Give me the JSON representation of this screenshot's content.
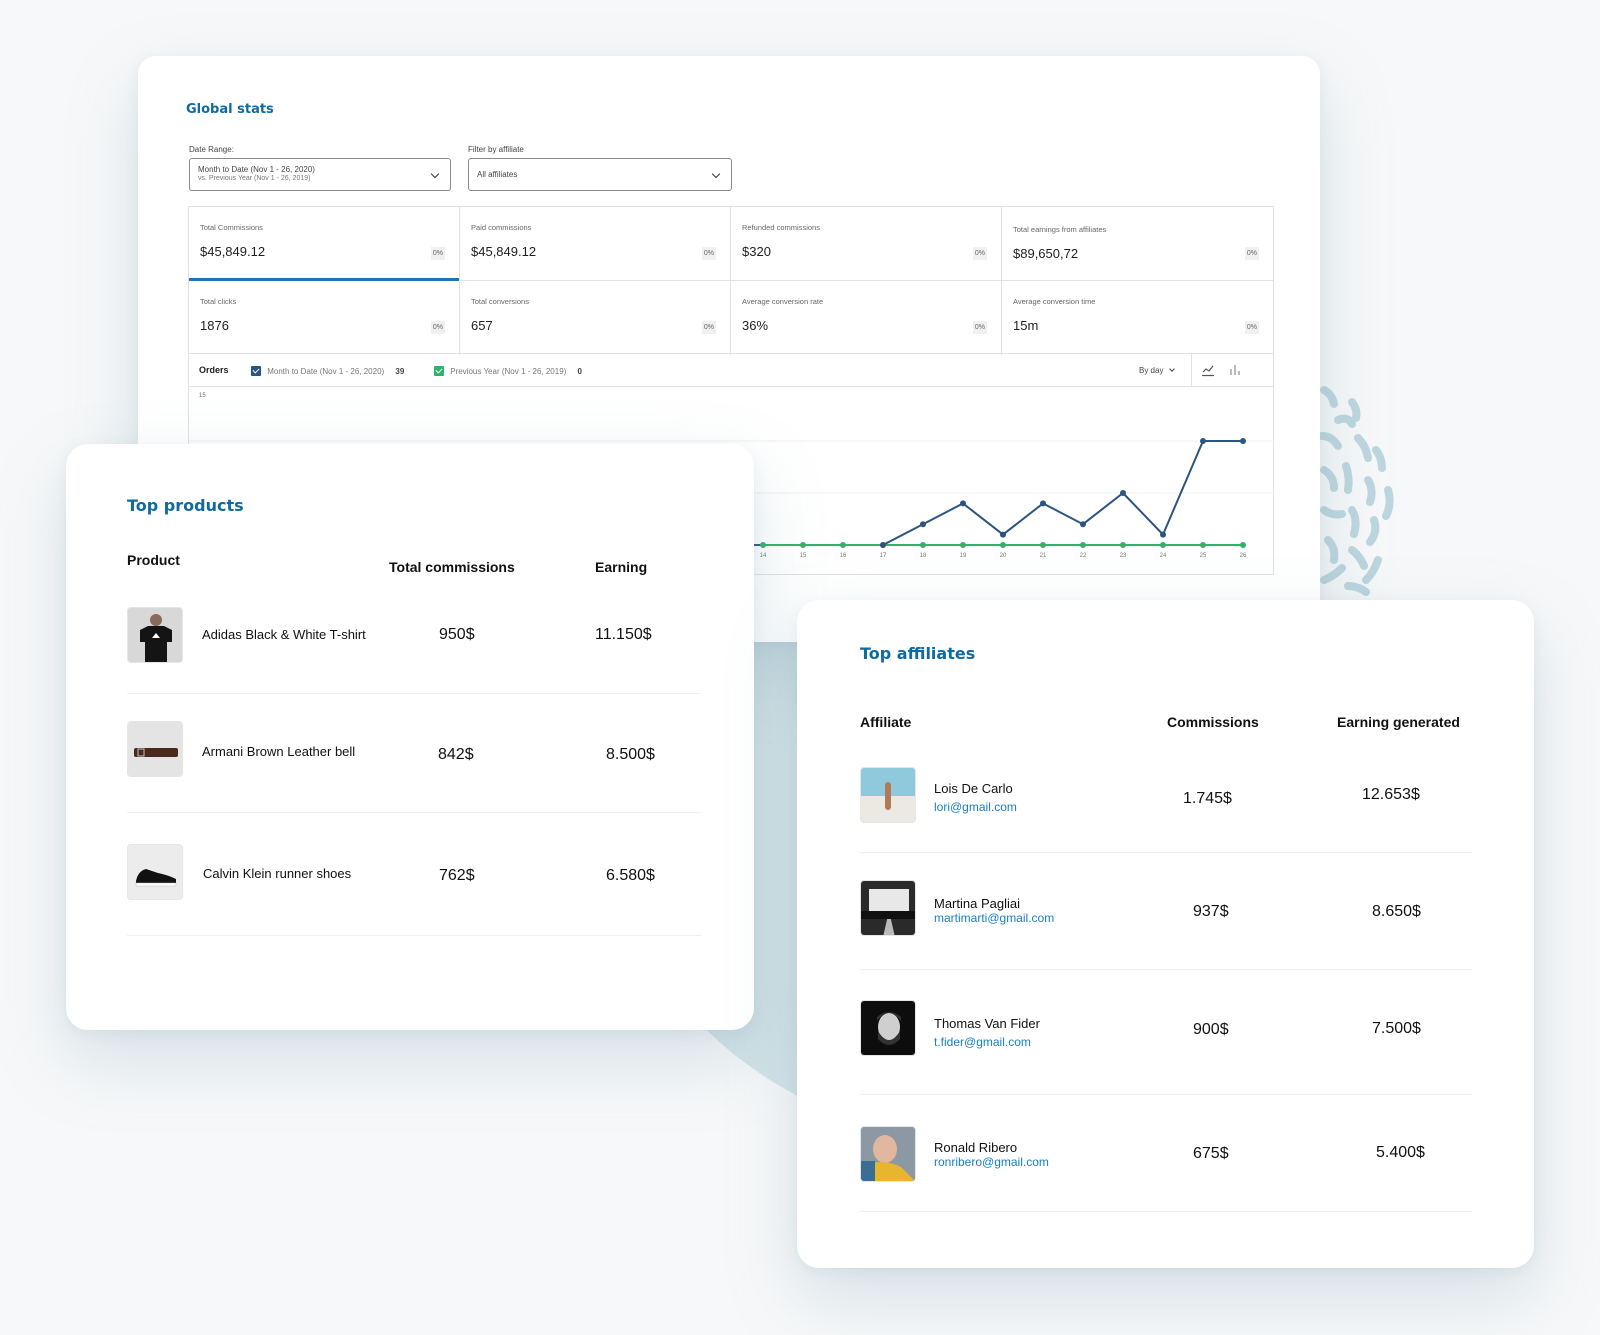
{
  "global_stats": {
    "title": "Global stats",
    "date_range": {
      "label": "Date Range:",
      "value": "Month to Date (Nov 1 - 26, 2020)",
      "compare": "vs. Previous Year (Nov 1 - 26, 2019)"
    },
    "affiliate_filter": {
      "label": "Filter by affiliate",
      "value": "All affiliates"
    },
    "stats": [
      {
        "label": "Total Commissions",
        "value": "$45,849.12",
        "change": "0%"
      },
      {
        "label": "Paid commissions",
        "value": "$45,849.12",
        "change": "0%"
      },
      {
        "label": "Refunded commissions",
        "value": "$320",
        "change": "0%"
      },
      {
        "label": "Total earnings from affiliates",
        "value": "$89,650,72",
        "change": "0%"
      },
      {
        "label": "Total clicks",
        "value": "1876",
        "change": "0%"
      },
      {
        "label": "Total conversions",
        "value": "657",
        "change": "0%"
      },
      {
        "label": "Average conversion rate",
        "value": "36%",
        "change": "0%"
      },
      {
        "label": "Average conversion time",
        "value": "15m",
        "change": "0%"
      }
    ],
    "chart_header": {
      "title": "Orders",
      "series1_label": "Month to Date (Nov 1 - 26, 2020)",
      "series1_total": "39",
      "series2_label": "Previous Year (Nov 1 - 26, 2019)",
      "series2_total": "0",
      "interval": "By day"
    },
    "colors": {
      "accent": "#2271b1",
      "series1": "#2b5580",
      "series2": "#2fb36b",
      "title": "#0e6aa0"
    }
  },
  "chart_data": {
    "type": "line",
    "title": "Orders",
    "x": [
      "14",
      "15",
      "16",
      "17",
      "18",
      "19",
      "20",
      "21",
      "22",
      "23",
      "24",
      "25",
      "26"
    ],
    "series": [
      {
        "name": "Month to Date (Nov 1 - 26, 2020)",
        "values": [
          0,
          0,
          0,
          0,
          2,
          4,
          1,
          4,
          2,
          5,
          1,
          10,
          10
        ]
      },
      {
        "name": "Previous Year (Nov 1 - 26, 2019)",
        "values": [
          0,
          0,
          0,
          0,
          0,
          0,
          0,
          0,
          0,
          0,
          0,
          0,
          0
        ]
      }
    ],
    "ylim": [
      0,
      15
    ],
    "y_tick_labels": [
      "15"
    ],
    "grid": true,
    "legend_position": "top"
  },
  "top_products": {
    "title": "Top products",
    "headers": {
      "product": "Product",
      "commissions": "Total commissions",
      "earning": "Earning"
    },
    "rows": [
      {
        "name": "Adidas Black & White T-shirt",
        "commissions": "950$",
        "earning": "11.150$",
        "thumb": "tshirt"
      },
      {
        "name": "Armani Brown Leather bell",
        "commissions": "842$",
        "earning": "8.500$",
        "thumb": "belt"
      },
      {
        "name": "Calvin Klein runner shoes",
        "commissions": "762$",
        "earning": "6.580$",
        "thumb": "shoe"
      }
    ]
  },
  "top_affiliates": {
    "title": "Top affiliates",
    "headers": {
      "affiliate": "Affiliate",
      "commissions": "Commissions",
      "earning": "Earning generated"
    },
    "rows": [
      {
        "name": "Lois De Carlo",
        "email": "lori@gmail.com",
        "commissions": "1.745$",
        "earning": "12.653$"
      },
      {
        "name": "Martina Pagliai",
        "email": "martimarti@gmail.com",
        "commissions": "937$",
        "earning": "8.650$"
      },
      {
        "name": "Thomas Van Fider",
        "email": "t.fider@gmail.com",
        "commissions": "900$",
        "earning": "7.500$"
      },
      {
        "name": "Ronald Ribero",
        "email": "ronribero@gmail.com",
        "commissions": "675$",
        "earning": "5.400$"
      }
    ]
  }
}
